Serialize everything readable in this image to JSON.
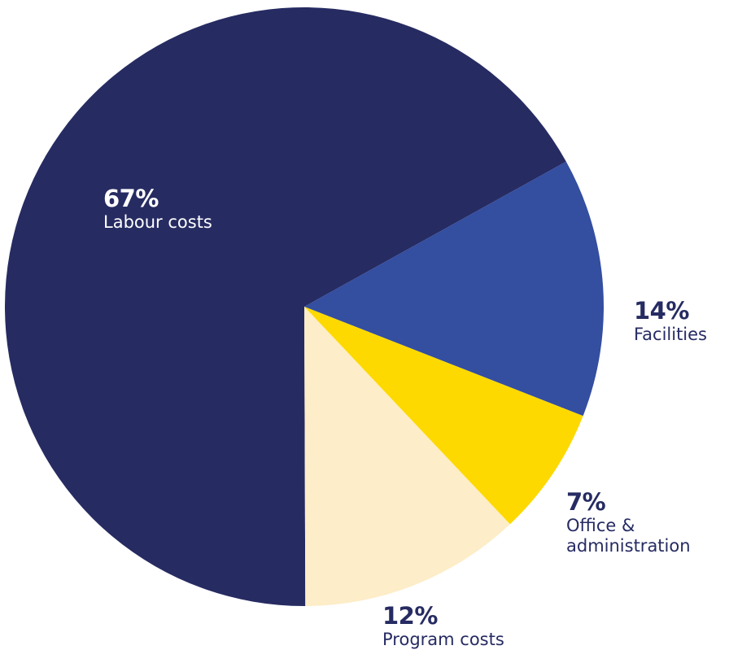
{
  "chart_data": {
    "type": "pie",
    "title": "",
    "slices": [
      {
        "label": "Facilities",
        "value": 14,
        "display": "14%",
        "color": "#344ea0"
      },
      {
        "label": "Office & administration",
        "display": "7%",
        "value": 7,
        "color": "#fdd900"
      },
      {
        "label": "Program costs",
        "value": 12,
        "display": "12%",
        "color": "#fdedc8"
      },
      {
        "label": "Labour costs",
        "value": 67,
        "display": "67%",
        "color": "#262b62"
      }
    ],
    "label_lines": {
      "office": [
        "Office &",
        "administration"
      ]
    }
  }
}
